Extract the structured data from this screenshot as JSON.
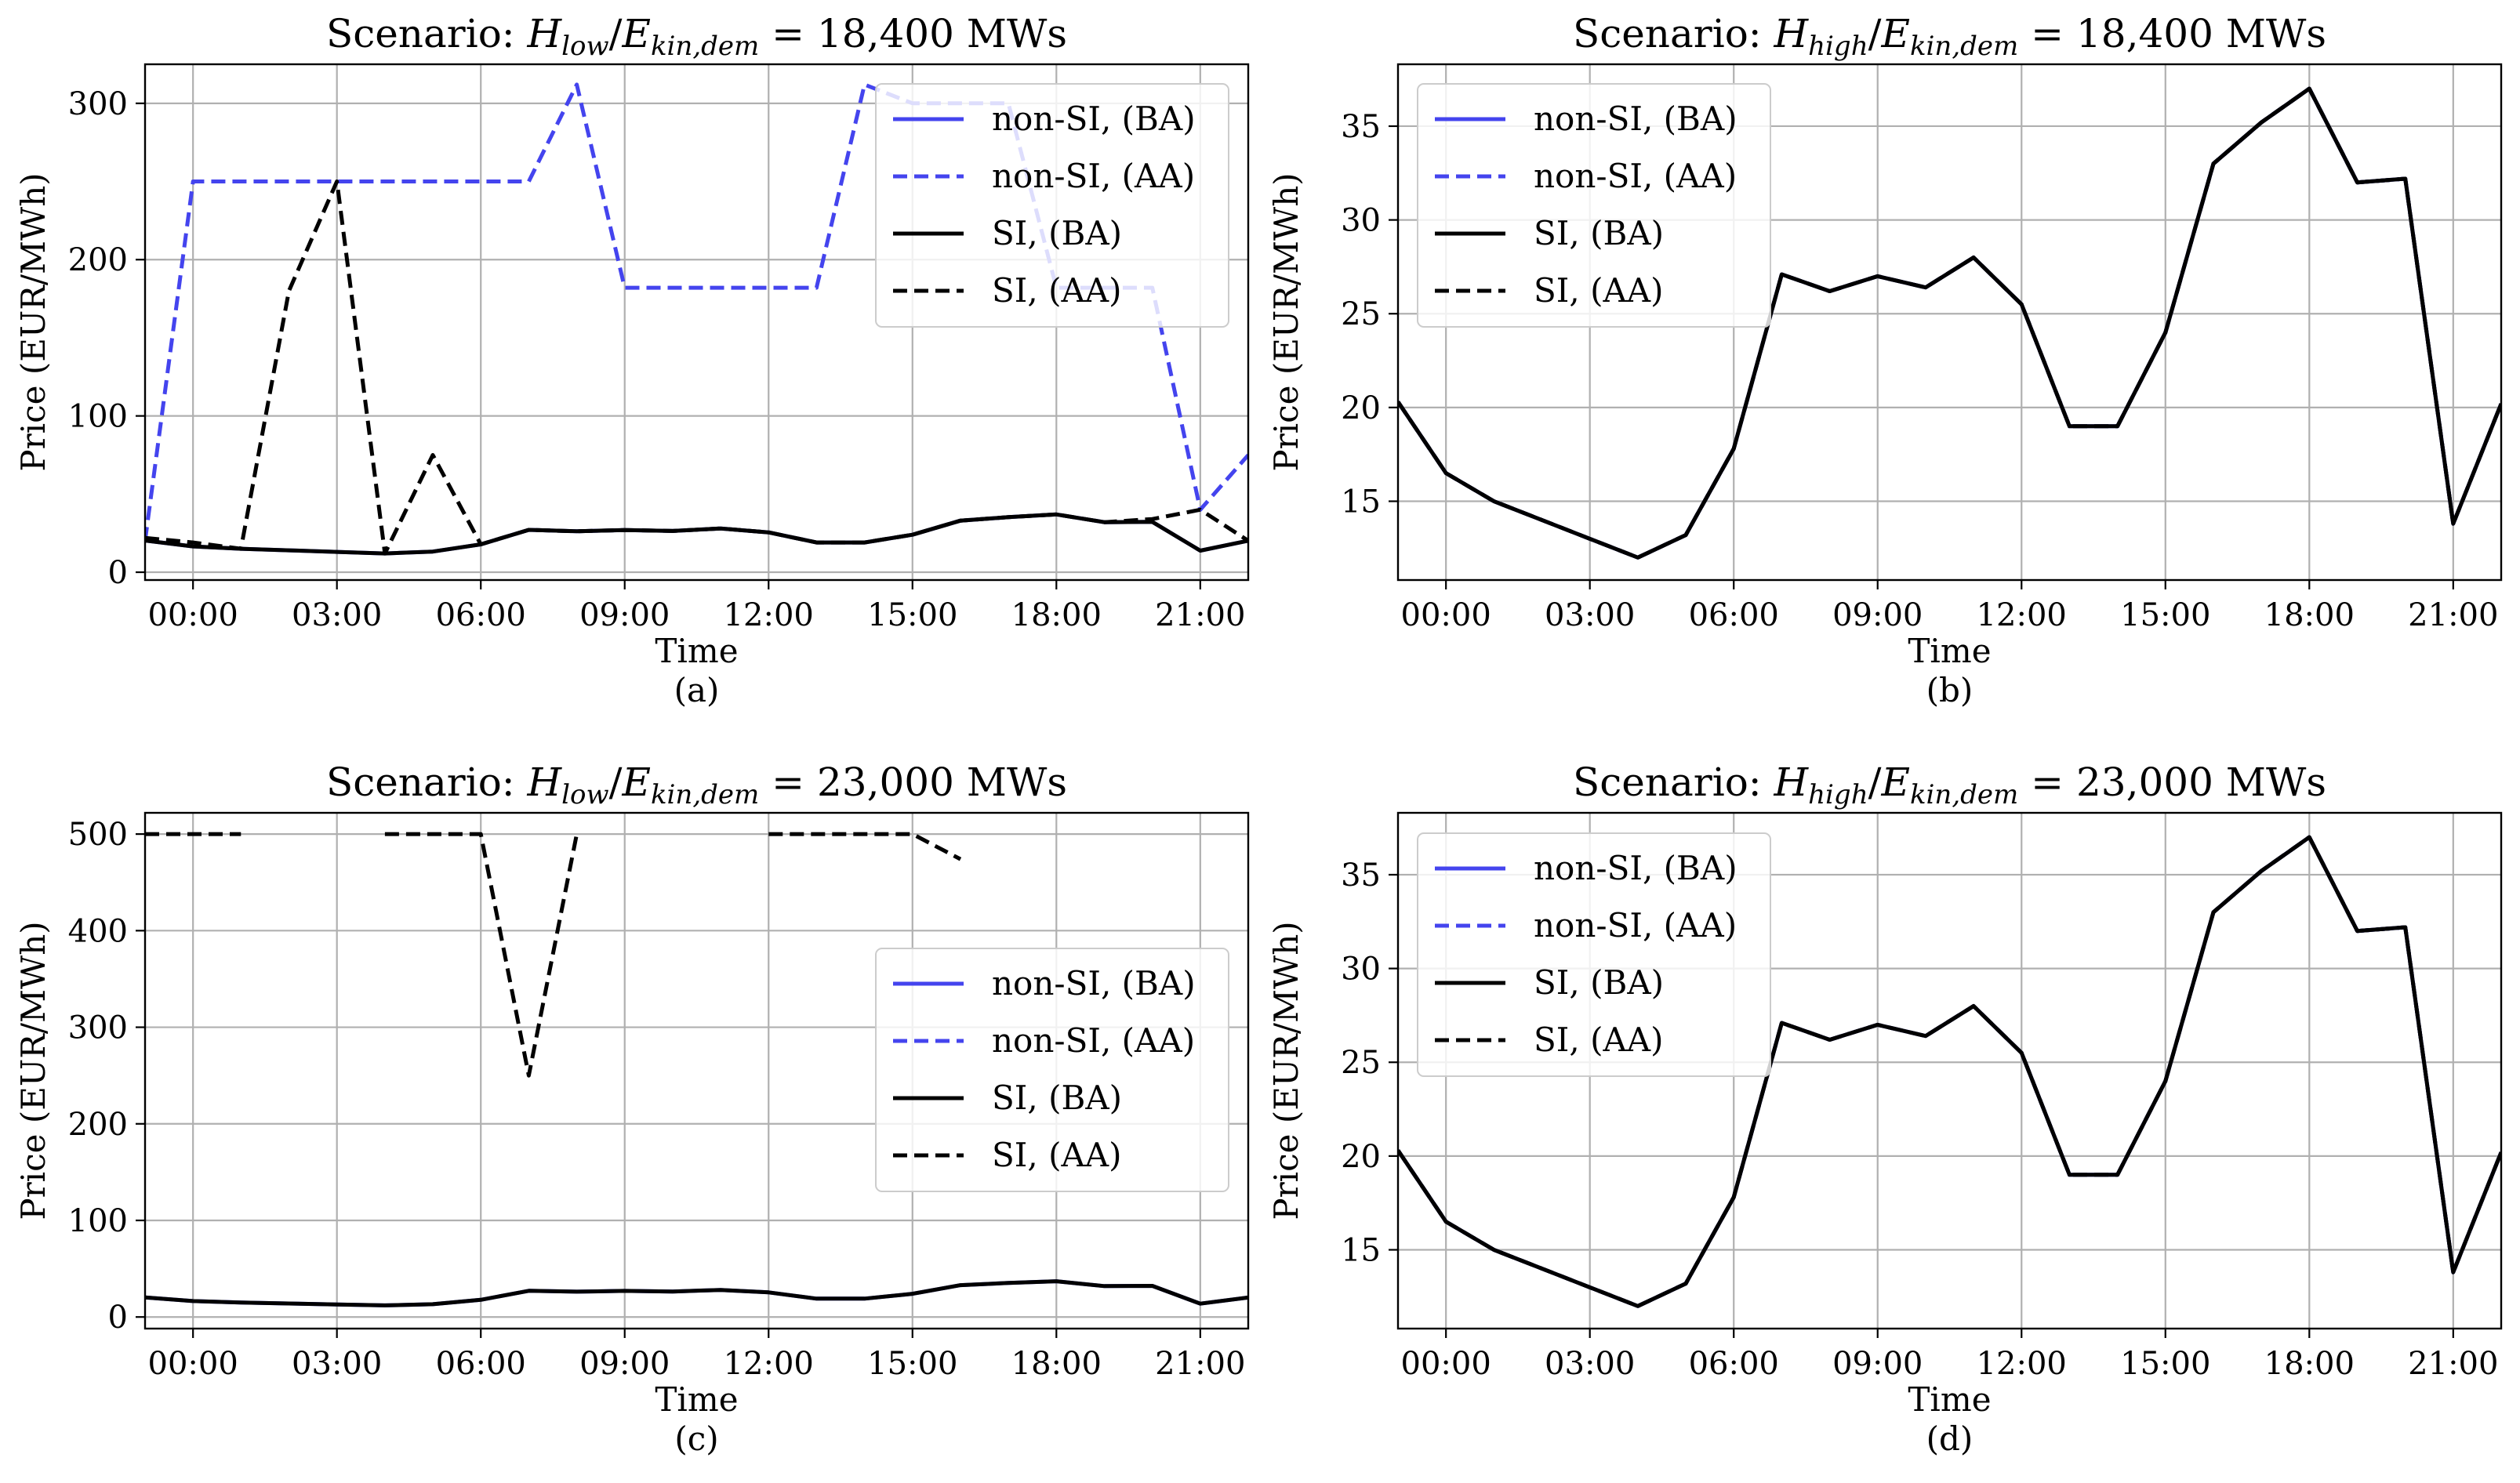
{
  "colors": {
    "blue": "#4444ee",
    "black": "#000000",
    "grid": "#b0b0b0"
  },
  "chart_data": [
    {
      "id": "a",
      "type": "line",
      "title": "Scenario:  H_low/E_kin,dem = 18,400 MWs",
      "title_parts": {
        "prefix": "Scenario:  ",
        "H": "H",
        "H_sub": "low",
        "E": "E",
        "E_sub": "kin,dem",
        "suffix": " = 18,400 MWs"
      },
      "caption": "(a)",
      "xlabel": "Time",
      "ylabel": "Price (EUR/MWh)",
      "xlim": [
        -1,
        22
      ],
      "ylim": [
        -5,
        325
      ],
      "x_ticks": [
        0,
        3,
        6,
        9,
        12,
        15,
        18,
        21
      ],
      "x_tick_labels": [
        "00:00",
        "03:00",
        "06:00",
        "09:00",
        "12:00",
        "15:00",
        "18:00",
        "21:00"
      ],
      "y_ticks": [
        0,
        100,
        200,
        300
      ],
      "y_tick_labels": [
        "0",
        "100",
        "200",
        "300"
      ],
      "legend_position": "top-right",
      "series": [
        {
          "name": "non-SI, (BA)",
          "color": "#4444ee",
          "dash": "solid",
          "x": [
            -1,
            0,
            1,
            2,
            3,
            4,
            5,
            6,
            7,
            8,
            9,
            10,
            11,
            12,
            13,
            14,
            15,
            16,
            17,
            18,
            19,
            20,
            21,
            22
          ],
          "y": [
            20.3,
            16.5,
            15.0,
            14.0,
            13.0,
            12.0,
            13.2,
            17.8,
            27.1,
            26.2,
            27.0,
            26.4,
            28.0,
            25.5,
            19.0,
            19.0,
            24.0,
            33.0,
            35.2,
            37.0,
            32.0,
            32.2,
            13.8,
            20.2
          ]
        },
        {
          "name": "non-SI, (AA)",
          "color": "#4444ee",
          "dash": "dashed",
          "x": [
            -1,
            0,
            1,
            2,
            3,
            4,
            5,
            6,
            7,
            8,
            9,
            10,
            11,
            12,
            13,
            14,
            15,
            16,
            17,
            18,
            19,
            20,
            21,
            22
          ],
          "y": [
            20,
            250,
            250,
            250,
            250,
            250,
            250,
            250,
            250,
            312,
            182,
            182,
            182,
            182,
            182,
            312,
            300,
            300,
            300,
            182,
            182,
            182,
            40,
            75
          ]
        },
        {
          "name": "SI, (BA)",
          "color": "#000000",
          "dash": "solid",
          "x": [
            -1,
            0,
            1,
            2,
            3,
            4,
            5,
            6,
            7,
            8,
            9,
            10,
            11,
            12,
            13,
            14,
            15,
            16,
            17,
            18,
            19,
            20,
            21,
            22
          ],
          "y": [
            20.3,
            16.5,
            15.0,
            14.0,
            13.0,
            12.0,
            13.2,
            17.8,
            27.1,
            26.2,
            27.0,
            26.4,
            28.0,
            25.5,
            19.0,
            19.0,
            24.0,
            33.0,
            35.2,
            37.0,
            32.0,
            32.2,
            13.8,
            20.2
          ]
        },
        {
          "name": "SI, (AA)",
          "color": "#000000",
          "dash": "dashed",
          "x": [
            -1,
            0,
            1,
            2,
            3,
            4,
            5,
            6,
            7,
            8,
            9,
            10,
            11,
            12,
            13,
            14,
            15,
            16,
            17,
            18,
            19,
            20,
            21,
            22
          ],
          "y": [
            22,
            19,
            15,
            180,
            250,
            12,
            75,
            17.8,
            27.1,
            26.2,
            27.0,
            26.4,
            28.0,
            25.5,
            19.0,
            19.0,
            24.0,
            33.0,
            35.2,
            37.0,
            32.0,
            34.0,
            40,
            20.2
          ]
        }
      ]
    },
    {
      "id": "b",
      "type": "line",
      "title": "Scenario:  H_high/E_kin,dem = 18,400 MWs",
      "title_parts": {
        "prefix": "Scenario:  ",
        "H": "H",
        "H_sub": "high",
        "E": "E",
        "E_sub": "kin,dem",
        "suffix": " = 18,400 MWs"
      },
      "caption": "(b)",
      "xlabel": "Time",
      "ylabel": "Price (EUR/MWh)",
      "xlim": [
        -1,
        22
      ],
      "ylim": [
        10.8,
        38.3
      ],
      "x_ticks": [
        0,
        3,
        6,
        9,
        12,
        15,
        18,
        21
      ],
      "x_tick_labels": [
        "00:00",
        "03:00",
        "06:00",
        "09:00",
        "12:00",
        "15:00",
        "18:00",
        "21:00"
      ],
      "y_ticks": [
        15,
        20,
        25,
        30,
        35
      ],
      "y_tick_labels": [
        "15",
        "20",
        "25",
        "30",
        "35"
      ],
      "legend_position": "top-left",
      "series": [
        {
          "name": "non-SI, (BA)",
          "color": "#4444ee",
          "dash": "solid",
          "x": [
            -1,
            0,
            1,
            2,
            3,
            4,
            5,
            6,
            7,
            8,
            9,
            10,
            11,
            12,
            13,
            14,
            15,
            16,
            17,
            18,
            19,
            20,
            21,
            22
          ],
          "y": [
            20.3,
            16.5,
            15.0,
            14.0,
            13.0,
            12.0,
            13.2,
            17.8,
            27.1,
            26.2,
            27.0,
            26.4,
            28.0,
            25.5,
            19.0,
            19.0,
            24.0,
            33.0,
            35.2,
            37.0,
            32.0,
            32.2,
            13.8,
            20.2
          ]
        },
        {
          "name": "non-SI, (AA)",
          "color": "#4444ee",
          "dash": "dashed",
          "x": [
            -1,
            0,
            1,
            2,
            3,
            4,
            5,
            6,
            7,
            8,
            9,
            10,
            11,
            12,
            13,
            14,
            15,
            16,
            17,
            18,
            19,
            20,
            21,
            22
          ],
          "y": [
            20.3,
            16.5,
            15.0,
            14.0,
            13.0,
            12.0,
            13.2,
            17.8,
            27.1,
            26.2,
            27.0,
            26.4,
            28.0,
            25.5,
            19.0,
            19.0,
            24.0,
            33.0,
            35.2,
            37.0,
            32.0,
            32.2,
            13.8,
            20.2
          ]
        },
        {
          "name": "SI, (BA)",
          "color": "#000000",
          "dash": "solid",
          "x": [
            -1,
            0,
            1,
            2,
            3,
            4,
            5,
            6,
            7,
            8,
            9,
            10,
            11,
            12,
            13,
            14,
            15,
            16,
            17,
            18,
            19,
            20,
            21,
            22
          ],
          "y": [
            20.3,
            16.5,
            15.0,
            14.0,
            13.0,
            12.0,
            13.2,
            17.8,
            27.1,
            26.2,
            27.0,
            26.4,
            28.0,
            25.5,
            19.0,
            19.0,
            24.0,
            33.0,
            35.2,
            37.0,
            32.0,
            32.2,
            13.8,
            20.2
          ]
        },
        {
          "name": "SI, (AA)",
          "color": "#000000",
          "dash": "dashed",
          "x": [
            -1,
            0,
            1,
            2,
            3,
            4,
            5,
            6,
            7,
            8,
            9,
            10,
            11,
            12,
            13,
            14,
            15,
            16,
            17,
            18,
            19,
            20,
            21,
            22
          ],
          "y": [
            20.3,
            16.5,
            15.0,
            14.0,
            13.0,
            12.0,
            13.2,
            17.8,
            27.1,
            26.2,
            27.0,
            26.4,
            28.0,
            25.5,
            19.0,
            19.0,
            24.0,
            33.0,
            35.2,
            37.0,
            32.0,
            32.2,
            13.8,
            20.2
          ]
        }
      ]
    },
    {
      "id": "c",
      "type": "line",
      "title": "Scenario:  H_low/E_kin,dem = 23,000 MWs",
      "title_parts": {
        "prefix": "Scenario:  ",
        "H": "H",
        "H_sub": "low",
        "E": "E",
        "E_sub": "kin,dem",
        "suffix": " = 23,000 MWs"
      },
      "caption": "(c)",
      "xlabel": "Time",
      "ylabel": "Price (EUR/MWh)",
      "xlim": [
        -1,
        22
      ],
      "ylim": [
        -12,
        522
      ],
      "x_ticks": [
        0,
        3,
        6,
        9,
        12,
        15,
        18,
        21
      ],
      "x_tick_labels": [
        "00:00",
        "03:00",
        "06:00",
        "09:00",
        "12:00",
        "15:00",
        "18:00",
        "21:00"
      ],
      "y_ticks": [
        0,
        100,
        200,
        300,
        400,
        500
      ],
      "y_tick_labels": [
        "0",
        "100",
        "200",
        "300",
        "400",
        "500"
      ],
      "legend_position": "center-right",
      "series": [
        {
          "name": "non-SI, (BA)",
          "color": "#4444ee",
          "dash": "solid",
          "x": [
            -1,
            0,
            1,
            2,
            3,
            4,
            5,
            6,
            7,
            8,
            9,
            10,
            11,
            12,
            13,
            14,
            15,
            16,
            17,
            18,
            19,
            20,
            21,
            22
          ],
          "y": [
            20.3,
            16.5,
            15.0,
            14.0,
            13.0,
            12.0,
            13.2,
            17.8,
            27.1,
            26.2,
            27.0,
            26.4,
            28.0,
            25.5,
            19.0,
            19.0,
            24.0,
            33.0,
            35.2,
            37.0,
            32.0,
            32.2,
            13.8,
            20.2
          ]
        },
        {
          "name": "non-SI, (AA)",
          "color": "#4444ee",
          "dash": "dashed",
          "x": [],
          "y": []
        },
        {
          "name": "SI, (BA)",
          "color": "#000000",
          "dash": "solid",
          "x": [
            -1,
            0,
            1,
            2,
            3,
            4,
            5,
            6,
            7,
            8,
            9,
            10,
            11,
            12,
            13,
            14,
            15,
            16,
            17,
            18,
            19,
            20,
            21,
            22
          ],
          "y": [
            20.3,
            16.5,
            15.0,
            14.0,
            13.0,
            12.0,
            13.2,
            17.8,
            27.1,
            26.2,
            27.0,
            26.4,
            28.0,
            25.5,
            19.0,
            19.0,
            24.0,
            33.0,
            35.2,
            37.0,
            32.0,
            32.2,
            13.8,
            20.2
          ]
        },
        {
          "name": "SI, (AA)",
          "color": "#000000",
          "dash": "dashed",
          "segments": [
            {
              "x": [
                -1,
                0,
                1
              ],
              "y": [
                500,
                500,
                500
              ]
            },
            {
              "x": [
                4,
                5,
                6,
                7,
                8
              ],
              "y": [
                500,
                500,
                500,
                250,
                500
              ]
            },
            {
              "x": [
                12,
                13,
                14,
                15,
                16
              ],
              "y": [
                500,
                500,
                500,
                500,
                474
              ]
            }
          ]
        }
      ]
    },
    {
      "id": "d",
      "type": "line",
      "title": "Scenario:  H_high/E_kin,dem = 23,000 MWs",
      "title_parts": {
        "prefix": "Scenario:  ",
        "H": "H",
        "H_sub": "high",
        "E": "E",
        "E_sub": "kin,dem",
        "suffix": " = 23,000 MWs"
      },
      "caption": "(d)",
      "xlabel": "Time",
      "ylabel": "Price (EUR/MWh)",
      "xlim": [
        -1,
        22
      ],
      "ylim": [
        10.8,
        38.3
      ],
      "x_ticks": [
        0,
        3,
        6,
        9,
        12,
        15,
        18,
        21
      ],
      "x_tick_labels": [
        "00:00",
        "03:00",
        "06:00",
        "09:00",
        "12:00",
        "15:00",
        "18:00",
        "21:00"
      ],
      "y_ticks": [
        15,
        20,
        25,
        30,
        35
      ],
      "y_tick_labels": [
        "15",
        "20",
        "25",
        "30",
        "35"
      ],
      "legend_position": "top-left",
      "series": [
        {
          "name": "non-SI, (BA)",
          "color": "#4444ee",
          "dash": "solid",
          "x": [
            -1,
            0,
            1,
            2,
            3,
            4,
            5,
            6,
            7,
            8,
            9,
            10,
            11,
            12,
            13,
            14,
            15,
            16,
            17,
            18,
            19,
            20,
            21,
            22
          ],
          "y": [
            20.3,
            16.5,
            15.0,
            14.0,
            13.0,
            12.0,
            13.2,
            17.8,
            27.1,
            26.2,
            27.0,
            26.4,
            28.0,
            25.5,
            19.0,
            19.0,
            24.0,
            33.0,
            35.2,
            37.0,
            32.0,
            32.2,
            13.8,
            20.2
          ]
        },
        {
          "name": "non-SI, (AA)",
          "color": "#4444ee",
          "dash": "dashed",
          "x": [
            -1,
            0,
            1,
            2,
            3,
            4,
            5,
            6,
            7,
            8,
            9,
            10,
            11,
            12,
            13,
            14,
            15,
            16,
            17,
            18,
            19,
            20,
            21,
            22
          ],
          "y": [
            20.3,
            16.5,
            15.0,
            14.0,
            13.0,
            12.0,
            13.2,
            17.8,
            27.1,
            26.2,
            27.0,
            26.4,
            28.0,
            25.5,
            19.0,
            19.0,
            24.0,
            33.0,
            35.2,
            37.0,
            32.0,
            32.2,
            13.8,
            20.2
          ]
        },
        {
          "name": "SI, (BA)",
          "color": "#000000",
          "dash": "solid",
          "x": [
            -1,
            0,
            1,
            2,
            3,
            4,
            5,
            6,
            7,
            8,
            9,
            10,
            11,
            12,
            13,
            14,
            15,
            16,
            17,
            18,
            19,
            20,
            21,
            22
          ],
          "y": [
            20.3,
            16.5,
            15.0,
            14.0,
            13.0,
            12.0,
            13.2,
            17.8,
            27.1,
            26.2,
            27.0,
            26.4,
            28.0,
            25.5,
            19.0,
            19.0,
            24.0,
            33.0,
            35.2,
            37.0,
            32.0,
            32.2,
            13.8,
            20.2
          ]
        },
        {
          "name": "SI, (AA)",
          "color": "#000000",
          "dash": "dashed",
          "x": [
            -1,
            0,
            1,
            2,
            3,
            4,
            5,
            6,
            7,
            8,
            9,
            10,
            11,
            12,
            13,
            14,
            15,
            16,
            17,
            18,
            19,
            20,
            21,
            22
          ],
          "y": [
            20.3,
            16.5,
            15.0,
            14.0,
            13.0,
            12.0,
            13.2,
            17.8,
            27.1,
            26.2,
            27.0,
            26.4,
            28.0,
            25.5,
            19.0,
            19.0,
            24.0,
            33.0,
            35.2,
            37.0,
            32.0,
            32.2,
            13.8,
            20.2
          ]
        }
      ]
    }
  ]
}
